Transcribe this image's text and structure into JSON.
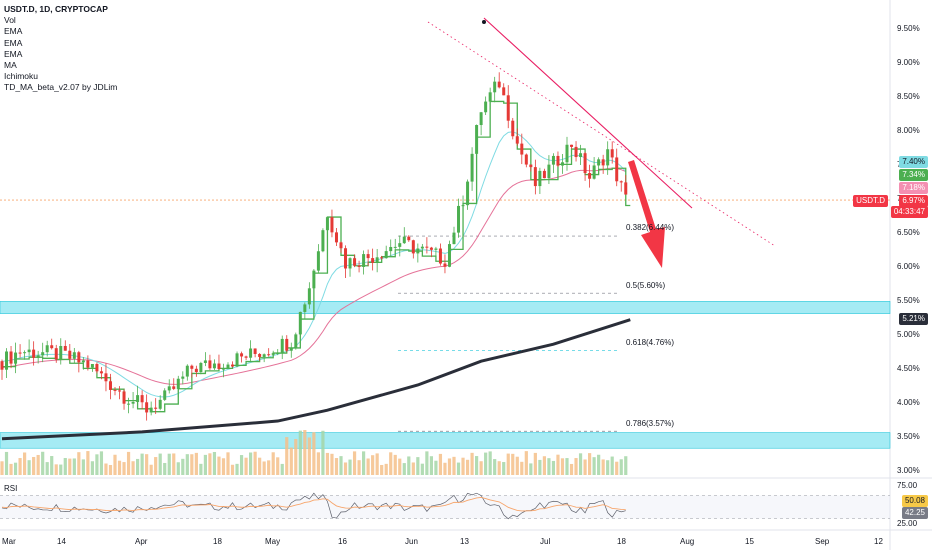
{
  "legend": {
    "symbol": "USDT.D, 1D, CRYPTOCAP",
    "indicators": [
      "Vol",
      "EMA",
      "EMA",
      "EMA",
      "MA",
      "Ichimoku",
      "TD_MA_beta_v2.07 by JDLim"
    ]
  },
  "y_axis_labels": [
    "9.50%",
    "9.00%",
    "8.50%",
    "8.00%",
    "7.50%",
    "7.00%",
    "6.50%",
    "6.00%",
    "5.50%",
    "5.00%",
    "4.50%",
    "4.00%",
    "3.50%",
    "3.00%"
  ],
  "rsi": {
    "title": "RSI",
    "axis_labels": [
      "75.00",
      "25.00"
    ],
    "value1": "50.08",
    "value2": "42.25"
  },
  "x_axis_labels": [
    "Mar",
    "14",
    "Apr",
    "18",
    "May",
    "16",
    "Jun",
    "13",
    "Jul",
    "18",
    "Aug",
    "15",
    "Sep",
    "12"
  ],
  "price_tags": {
    "tag_740": "7.40%",
    "tag_734": "7.34%",
    "tag_718": "7.18%",
    "symbol_tag": "USDT.D",
    "current_price": "6.97%",
    "countdown": "04:33:47",
    "tag_521": "5.21%"
  },
  "fib_levels": [
    {
      "label": "0.382(6.44%)",
      "price": 6.44
    },
    {
      "label": "0.5(5.60%)",
      "price": 5.6
    },
    {
      "label": "0.618(4.76%)",
      "price": 4.76
    },
    {
      "label": "0.786(3.57%)",
      "price": 3.57
    }
  ],
  "colors": {
    "up": "#26a69a",
    "down": "#ef5350",
    "candle_up": "#4caf50",
    "candle_down": "#e53935",
    "trendline": "#e91e63",
    "arrow": "#f23645",
    "ma200": "#2a2e39",
    "ema_pink": "#e57399",
    "ema_cyan": "#7fdbe3",
    "td_green": "#4caf50",
    "zone": "#7fe3ef",
    "current_line": "#f7a56b"
  },
  "chart_data": {
    "type": "candlestick",
    "symbol": "USDT.D",
    "timeframe": "1D",
    "ylim": [
      2.9,
      9.75
    ],
    "x_ticks": [
      "Mar",
      "14",
      "Apr",
      "18",
      "May",
      "16",
      "Jun",
      "13",
      "Jul",
      "18",
      "Aug",
      "15",
      "Sep",
      "12"
    ],
    "y_ticks": [
      9.5,
      9.0,
      8.5,
      8.0,
      7.5,
      7.0,
      6.5,
      6.0,
      5.5,
      5.0,
      4.5,
      4.0,
      3.5,
      3.0
    ],
    "current_price": 6.97,
    "annotations": [
      "downtrend line from June high",
      "red arrow pointing down toward 0.5 fib"
    ],
    "support_zones": [
      [
        5.3,
        5.48
      ],
      [
        3.32,
        3.55
      ]
    ],
    "close_path_keypoints": [
      {
        "date": "Mar 1",
        "value": 4.6
      },
      {
        "date": "Mar 5",
        "value": 4.75
      },
      {
        "date": "Mar 14",
        "value": 4.7
      },
      {
        "date": "Mar 20",
        "value": 4.55
      },
      {
        "date": "Mar 28",
        "value": 4.1
      },
      {
        "date": "Apr 2",
        "value": 3.9
      },
      {
        "date": "Apr 6",
        "value": 4.05
      },
      {
        "date": "Apr 12",
        "value": 4.5
      },
      {
        "date": "Apr 20",
        "value": 4.6
      },
      {
        "date": "Apr 28",
        "value": 4.75
      },
      {
        "date": "May 4",
        "value": 4.9
      },
      {
        "date": "May 8",
        "value": 5.7
      },
      {
        "date": "May 12",
        "value": 6.8
      },
      {
        "date": "May 16",
        "value": 6.05
      },
      {
        "date": "May 22",
        "value": 6.15
      },
      {
        "date": "May 28",
        "value": 6.35
      },
      {
        "date": "Jun 3",
        "value": 6.2
      },
      {
        "date": "Jun 7",
        "value": 6.1
      },
      {
        "date": "Jun 11",
        "value": 7.0
      },
      {
        "date": "Jun 15",
        "value": 8.3
      },
      {
        "date": "Jun 19",
        "value": 8.7
      },
      {
        "date": "Jun 23",
        "value": 7.8
      },
      {
        "date": "Jun 27",
        "value": 7.2
      },
      {
        "date": "Jul 1",
        "value": 7.5
      },
      {
        "date": "Jul 5",
        "value": 7.8
      },
      {
        "date": "Jul 9",
        "value": 7.3
      },
      {
        "date": "Jul 13",
        "value": 7.7
      },
      {
        "date": "Jul 17",
        "value": 6.97
      }
    ],
    "ma200_keypoints": [
      {
        "date": "Mar 1",
        "value": 3.46
      },
      {
        "date": "Apr 1",
        "value": 3.56
      },
      {
        "date": "May 1",
        "value": 3.72
      },
      {
        "date": "May 12",
        "value": 3.88
      },
      {
        "date": "Jun 1",
        "value": 4.25
      },
      {
        "date": "Jun 15",
        "value": 4.6
      },
      {
        "date": "Jul 1",
        "value": 4.85
      },
      {
        "date": "Jul 18",
        "value": 5.21
      }
    ],
    "trendline": [
      {
        "date": "Jun 19",
        "value": 9.5
      },
      {
        "date": "Jul 28",
        "value": 6.85
      }
    ],
    "rsi": {
      "levels": [
        75,
        25
      ],
      "values": [
        50.08,
        42.25
      ]
    }
  }
}
